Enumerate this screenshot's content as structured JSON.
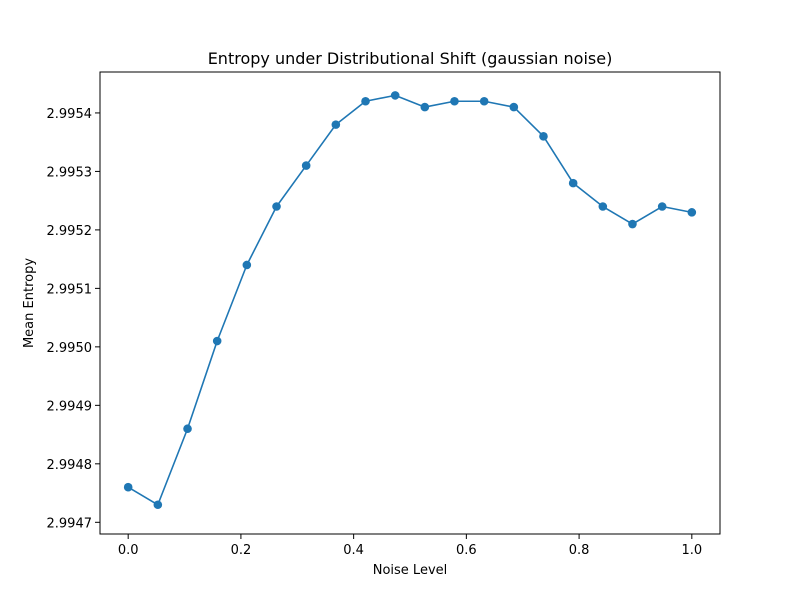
{
  "chart_data": {
    "type": "line",
    "title": "Entropy under Distributional Shift (gaussian noise)",
    "xlabel": "Noise Level",
    "ylabel": "Mean Entropy",
    "xlim": [
      -0.05,
      1.05
    ],
    "ylim": [
      2.99468,
      2.99547
    ],
    "xticks": [
      0.0,
      0.2,
      0.4,
      0.6,
      0.8,
      1.0
    ],
    "xtick_labels": [
      "0.0",
      "0.2",
      "0.4",
      "0.6",
      "0.8",
      "1.0"
    ],
    "yticks": [
      2.9947,
      2.9948,
      2.9949,
      2.995,
      2.9951,
      2.9952,
      2.9953,
      2.9954
    ],
    "ytick_labels": [
      "2.9947",
      "2.9948",
      "2.9949",
      "2.9950",
      "2.9951",
      "2.9952",
      "2.9953",
      "2.9954"
    ],
    "grid": false,
    "color": "#1f77b4",
    "marker": "circle",
    "series": [
      {
        "x": [
          0.0,
          0.0526,
          0.1053,
          0.1579,
          0.2105,
          0.2632,
          0.3158,
          0.3684,
          0.4211,
          0.4737,
          0.5263,
          0.5789,
          0.6316,
          0.6842,
          0.7368,
          0.7895,
          0.8421,
          0.8947,
          0.9474,
          1.0
        ],
        "values": [
          2.99476,
          2.99473,
          2.99486,
          2.99501,
          2.99514,
          2.99524,
          2.99531,
          2.99538,
          2.99542,
          2.99543,
          2.99541,
          2.99542,
          2.99542,
          2.99541,
          2.99536,
          2.99528,
          2.99524,
          2.99521,
          2.99524,
          2.99523
        ]
      }
    ]
  }
}
